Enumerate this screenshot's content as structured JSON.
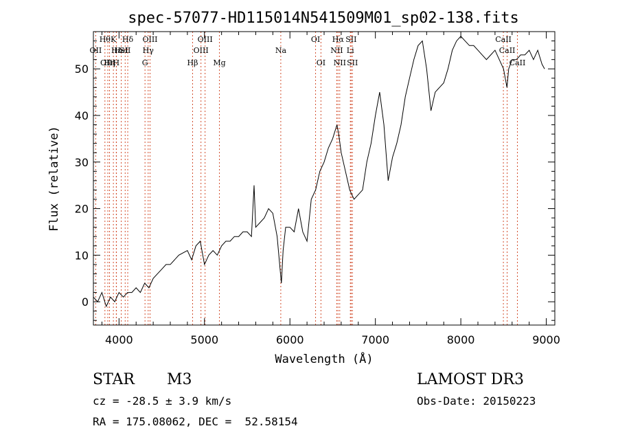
{
  "chart_data": {
    "type": "line",
    "title": "spec-57077-HD115014N541509M01_sp02-138.fits",
    "xlabel": "Wavelength (Å)",
    "ylabel": "Flux (relative)",
    "xlim": [
      3700,
      9100
    ],
    "ylim": [
      -5,
      58
    ],
    "x_ticks": [
      4000,
      5000,
      6000,
      7000,
      8000,
      9000
    ],
    "y_ticks": [
      0,
      10,
      20,
      30,
      40,
      50
    ],
    "grid": false,
    "series": [
      {
        "name": "spectrum",
        "x": [
          3700,
          3750,
          3800,
          3850,
          3900,
          3950,
          4000,
          4050,
          4100,
          4150,
          4200,
          4250,
          4300,
          4350,
          4400,
          4450,
          4500,
          4550,
          4600,
          4700,
          4800,
          4850,
          4900,
          4950,
          5000,
          5050,
          5100,
          5150,
          5200,
          5250,
          5300,
          5350,
          5400,
          5450,
          5500,
          5550,
          5580,
          5600,
          5650,
          5700,
          5750,
          5800,
          5850,
          5890,
          5900,
          5920,
          5950,
          6000,
          6050,
          6100,
          6150,
          6200,
          6250,
          6300,
          6350,
          6400,
          6450,
          6500,
          6550,
          6570,
          6600,
          6650,
          6700,
          6750,
          6800,
          6850,
          6900,
          6950,
          7000,
          7050,
          7100,
          7150,
          7200,
          7250,
          7300,
          7350,
          7400,
          7450,
          7500,
          7550,
          7600,
          7650,
          7700,
          7750,
          7800,
          7850,
          7900,
          7950,
          8000,
          8050,
          8100,
          8150,
          8200,
          8250,
          8300,
          8350,
          8400,
          8450,
          8500,
          8520,
          8540,
          8560,
          8600,
          8650,
          8700,
          8750,
          8800,
          8850,
          8900,
          8950,
          8980
        ],
        "y": [
          1,
          0,
          2,
          -1,
          1,
          0,
          2,
          1,
          2,
          2,
          3,
          2,
          4,
          3,
          5,
          6,
          7,
          8,
          8,
          10,
          11,
          9,
          12,
          13,
          8,
          10,
          11,
          10,
          12,
          13,
          13,
          14,
          14,
          15,
          15,
          14,
          25,
          16,
          17,
          18,
          20,
          19,
          14,
          6,
          4,
          11,
          16,
          16,
          15,
          20,
          15,
          13,
          22,
          24,
          28,
          30,
          33,
          35,
          38,
          36,
          32,
          28,
          24,
          22,
          23,
          24,
          30,
          34,
          40,
          45,
          38,
          26,
          31,
          34,
          38,
          44,
          48,
          52,
          55,
          56,
          50,
          41,
          45,
          46,
          47,
          50,
          54,
          56,
          57,
          56,
          55,
          55,
          54,
          53,
          52,
          53,
          54,
          52,
          50,
          48,
          46,
          50,
          52,
          52,
          53,
          53,
          54,
          52,
          54,
          51,
          50
        ]
      }
    ],
    "line_labels": [
      {
        "wavelength": 3835,
        "label": "Hθ",
        "tier": 0
      },
      {
        "wavelength": 3727,
        "label": "OII",
        "tier": 1
      },
      {
        "wavelength": 3869,
        "label": "OIII",
        "tier": 2
      },
      {
        "wavelength": 3889,
        "label": "Hη",
        "tier": 2
      },
      {
        "wavelength": 3934,
        "label": "K",
        "tier": 0
      },
      {
        "wavelength": 3968,
        "label": "H",
        "tier": 2
      },
      {
        "wavelength": 3970,
        "label": "Hε",
        "tier": 1
      },
      {
        "wavelength": 4026,
        "label": "HeI",
        "tier": 1
      },
      {
        "wavelength": 4072,
        "label": "SII",
        "tier": 1
      },
      {
        "wavelength": 4102,
        "label": "Hδ",
        "tier": 0
      },
      {
        "wavelength": 4304,
        "label": "G",
        "tier": 2
      },
      {
        "wavelength": 4341,
        "label": "Hγ",
        "tier": 1
      },
      {
        "wavelength": 4363,
        "label": "OIII",
        "tier": 0
      },
      {
        "wavelength": 4861,
        "label": "Hβ",
        "tier": 2
      },
      {
        "wavelength": 4959,
        "label": "OIII",
        "tier": 1
      },
      {
        "wavelength": 5007,
        "label": "OIII",
        "tier": 0
      },
      {
        "wavelength": 5175,
        "label": "Mg",
        "tier": 2
      },
      {
        "wavelength": 5893,
        "label": "Na",
        "tier": 1
      },
      {
        "wavelength": 6300,
        "label": "OI",
        "tier": 0
      },
      {
        "wavelength": 6363,
        "label": "OI",
        "tier": 2
      },
      {
        "wavelength": 6548,
        "label": "NII",
        "tier": 1
      },
      {
        "wavelength": 6563,
        "label": "Hα",
        "tier": 0
      },
      {
        "wavelength": 6583,
        "label": "NII",
        "tier": 2
      },
      {
        "wavelength": 6707,
        "label": "Li",
        "tier": 1
      },
      {
        "wavelength": 6716,
        "label": "SII",
        "tier": 0
      },
      {
        "wavelength": 6731,
        "label": "SII",
        "tier": 2
      },
      {
        "wavelength": 8498,
        "label": "CaII",
        "tier": 0
      },
      {
        "wavelength": 8542,
        "label": "CaII",
        "tier": 1
      },
      {
        "wavelength": 8662,
        "label": "CaII",
        "tier": 2
      }
    ]
  },
  "info": {
    "object_class": "STAR",
    "subclass": "M3",
    "survey": "LAMOST DR3",
    "redshift": "cz = -28.5 ± 3.9 km/s",
    "obs_date": "Obs-Date: 20150223",
    "coords": "RA = 175.08062, DEC =  52.58154"
  },
  "colors": {
    "axes": "#000000",
    "line": "#000000",
    "marker": "#d24b2a"
  }
}
